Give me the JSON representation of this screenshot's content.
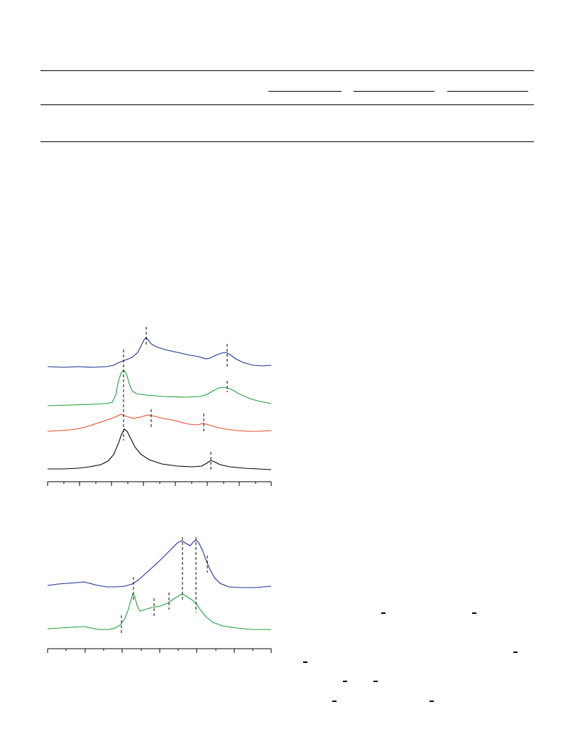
{
  "table": {
    "column_groups": 3
  },
  "figures": [
    {
      "name": "upper-spectra-panel",
      "traces": [
        {
          "name": "",
          "color": "#1f2f8f",
          "peak_markers": 2
        },
        {
          "name": "",
          "color": "#1f9e3a",
          "peak_markers": 2
        },
        {
          "name": "",
          "color": "#e84a2a",
          "peak_markers": 3
        },
        {
          "name": "",
          "color": "#000000",
          "peak_markers": 2
        }
      ],
      "x_axis_ticks": 15
    },
    {
      "name": "lower-spectra-panel",
      "traces": [
        {
          "name": "",
          "color": "#1f2f8f",
          "peak_markers": 3
        },
        {
          "name": "",
          "color": "#1f9e3a",
          "peak_markers": 5
        }
      ],
      "x_axis_ticks": 13
    }
  ],
  "colors": {
    "rule": "#000000",
    "blue": "#1f2f8f",
    "green": "#1f9e3a",
    "red": "#e84a2a",
    "black": "#000000"
  }
}
